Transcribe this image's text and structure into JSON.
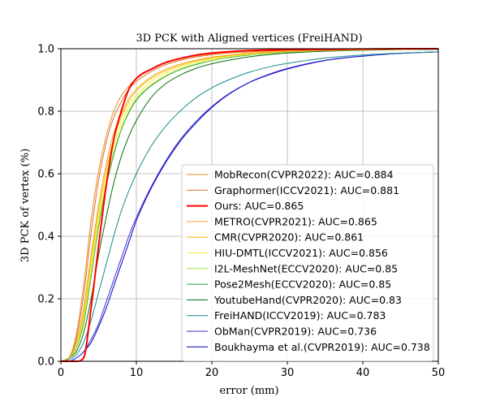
{
  "chart_data": {
    "type": "line",
    "title": "3D PCK with Aligned vertices (FreiHAND)",
    "xlabel": "error (mm)",
    "ylabel": "3D PCK of vertex (%)",
    "xlim": [
      0,
      50
    ],
    "ylim": [
      0,
      1.0
    ],
    "xticks": [
      0,
      10,
      20,
      30,
      40,
      50
    ],
    "yticks": [
      0.0,
      0.2,
      0.4,
      0.6,
      0.8,
      1.0
    ],
    "xtick_labels": [
      "0",
      "10",
      "20",
      "30",
      "40",
      "50"
    ],
    "ytick_labels": [
      "0.0",
      "0.2",
      "0.4",
      "0.6",
      "0.8",
      "1.0"
    ],
    "grid": true,
    "legend_position": "lower-right",
    "x": [
      0,
      1,
      2,
      3,
      4,
      5,
      6,
      7,
      8,
      9,
      10,
      12,
      14,
      16,
      18,
      20,
      22,
      25,
      28,
      30,
      35,
      40,
      45,
      50
    ],
    "series": [
      {
        "name": "MobRecon(CVPR2022): AUC=0.884",
        "color": "#e8912c",
        "width": 1,
        "values": [
          0.0,
          0.01,
          0.08,
          0.24,
          0.45,
          0.61,
          0.72,
          0.8,
          0.85,
          0.88,
          0.905,
          0.935,
          0.955,
          0.968,
          0.977,
          0.983,
          0.987,
          0.991,
          0.994,
          0.995,
          0.997,
          0.998,
          0.999,
          1.0
        ]
      },
      {
        "name": "Graphormer(ICCV2021): AUC=0.881",
        "color": "#e06a2a",
        "width": 1,
        "values": [
          0.0,
          0.01,
          0.07,
          0.21,
          0.41,
          0.58,
          0.7,
          0.78,
          0.83,
          0.87,
          0.895,
          0.928,
          0.95,
          0.964,
          0.974,
          0.981,
          0.986,
          0.99,
          0.993,
          0.995,
          0.997,
          0.998,
          0.999,
          1.0
        ]
      },
      {
        "name": "Ours: AUC=0.865",
        "color": "#ff0000",
        "width": 2,
        "values": [
          0.0,
          0.0,
          0.0,
          0.01,
          0.17,
          0.37,
          0.56,
          0.71,
          0.8,
          0.87,
          0.905,
          0.935,
          0.957,
          0.97,
          0.98,
          0.986,
          0.99,
          0.994,
          0.996,
          0.997,
          0.998,
          0.999,
          1.0,
          1.0
        ]
      },
      {
        "name": "METRO(CVPR2021): AUC=0.865",
        "color": "#f5a623",
        "width": 1,
        "values": [
          0.0,
          0.01,
          0.06,
          0.17,
          0.34,
          0.5,
          0.63,
          0.73,
          0.79,
          0.84,
          0.87,
          0.91,
          0.935,
          0.952,
          0.964,
          0.973,
          0.979,
          0.986,
          0.99,
          0.992,
          0.995,
          0.997,
          0.998,
          0.999
        ]
      },
      {
        "name": "CMR(CVPR2020): AUC=0.861",
        "color": "#f2c200",
        "width": 1,
        "values": [
          0.0,
          0.01,
          0.05,
          0.15,
          0.32,
          0.48,
          0.61,
          0.71,
          0.78,
          0.83,
          0.865,
          0.905,
          0.93,
          0.948,
          0.961,
          0.97,
          0.977,
          0.985,
          0.989,
          0.992,
          0.995,
          0.997,
          0.998,
          0.999
        ]
      },
      {
        "name": "HIU-DMTL(ICCV2021): AUC=0.856",
        "color": "#f7ef3a",
        "width": 1,
        "values": [
          0.0,
          0.01,
          0.05,
          0.14,
          0.3,
          0.46,
          0.59,
          0.69,
          0.76,
          0.815,
          0.85,
          0.895,
          0.923,
          0.943,
          0.957,
          0.967,
          0.975,
          0.983,
          0.988,
          0.991,
          0.995,
          0.997,
          0.998,
          0.999
        ]
      },
      {
        "name": "I2L-MeshNet(ECCV2020): AUC=0.85",
        "color": "#a6e03c",
        "width": 1,
        "values": [
          0.0,
          0.01,
          0.04,
          0.13,
          0.28,
          0.44,
          0.57,
          0.67,
          0.745,
          0.8,
          0.84,
          0.885,
          0.915,
          0.937,
          0.952,
          0.963,
          0.972,
          0.981,
          0.987,
          0.99,
          0.994,
          0.996,
          0.998,
          0.999
        ]
      },
      {
        "name": "Pose2Mesh(ECCV2020): AUC=0.85",
        "color": "#2ca02c",
        "width": 1,
        "values": [
          0.0,
          0.01,
          0.04,
          0.12,
          0.27,
          0.43,
          0.56,
          0.66,
          0.74,
          0.795,
          0.835,
          0.882,
          0.913,
          0.935,
          0.95,
          0.962,
          0.971,
          0.98,
          0.986,
          0.989,
          0.994,
          0.996,
          0.998,
          0.999
        ]
      },
      {
        "name": "YoutubeHand(CVPR2020): AUC=0.83",
        "color": "#0b6e0b",
        "width": 1,
        "values": [
          0.0,
          0.01,
          0.03,
          0.09,
          0.2,
          0.34,
          0.46,
          0.57,
          0.655,
          0.72,
          0.77,
          0.845,
          0.89,
          0.918,
          0.938,
          0.952,
          0.962,
          0.974,
          0.982,
          0.986,
          0.992,
          0.995,
          0.997,
          0.998
        ]
      },
      {
        "name": "FreiHAND(ICCV2019): AUC=0.783",
        "color": "#148c8c",
        "width": 1,
        "values": [
          0.0,
          0.005,
          0.02,
          0.06,
          0.13,
          0.22,
          0.31,
          0.4,
          0.48,
          0.545,
          0.6,
          0.69,
          0.755,
          0.805,
          0.845,
          0.875,
          0.898,
          0.925,
          0.944,
          0.953,
          0.97,
          0.98,
          0.986,
          0.99
        ]
      },
      {
        "name": "ObMan(CVPR2019): AUC=0.736",
        "color": "#3a2fd6",
        "width": 1,
        "values": [
          0.0,
          0.0,
          0.01,
          0.03,
          0.07,
          0.12,
          0.19,
          0.26,
          0.33,
          0.4,
          0.46,
          0.56,
          0.645,
          0.715,
          0.77,
          0.815,
          0.852,
          0.893,
          0.922,
          0.937,
          0.963,
          0.977,
          0.985,
          0.99
        ]
      },
      {
        "name": "Boukhayma et al.(CVPR2019): AUC=0.738",
        "color": "#0000b5",
        "width": 1,
        "values": [
          0.0,
          0.0,
          0.01,
          0.03,
          0.06,
          0.11,
          0.17,
          0.24,
          0.31,
          0.38,
          0.45,
          0.555,
          0.64,
          0.71,
          0.765,
          0.812,
          0.85,
          0.892,
          0.92,
          0.935,
          0.962,
          0.976,
          0.985,
          0.99
        ]
      }
    ]
  }
}
